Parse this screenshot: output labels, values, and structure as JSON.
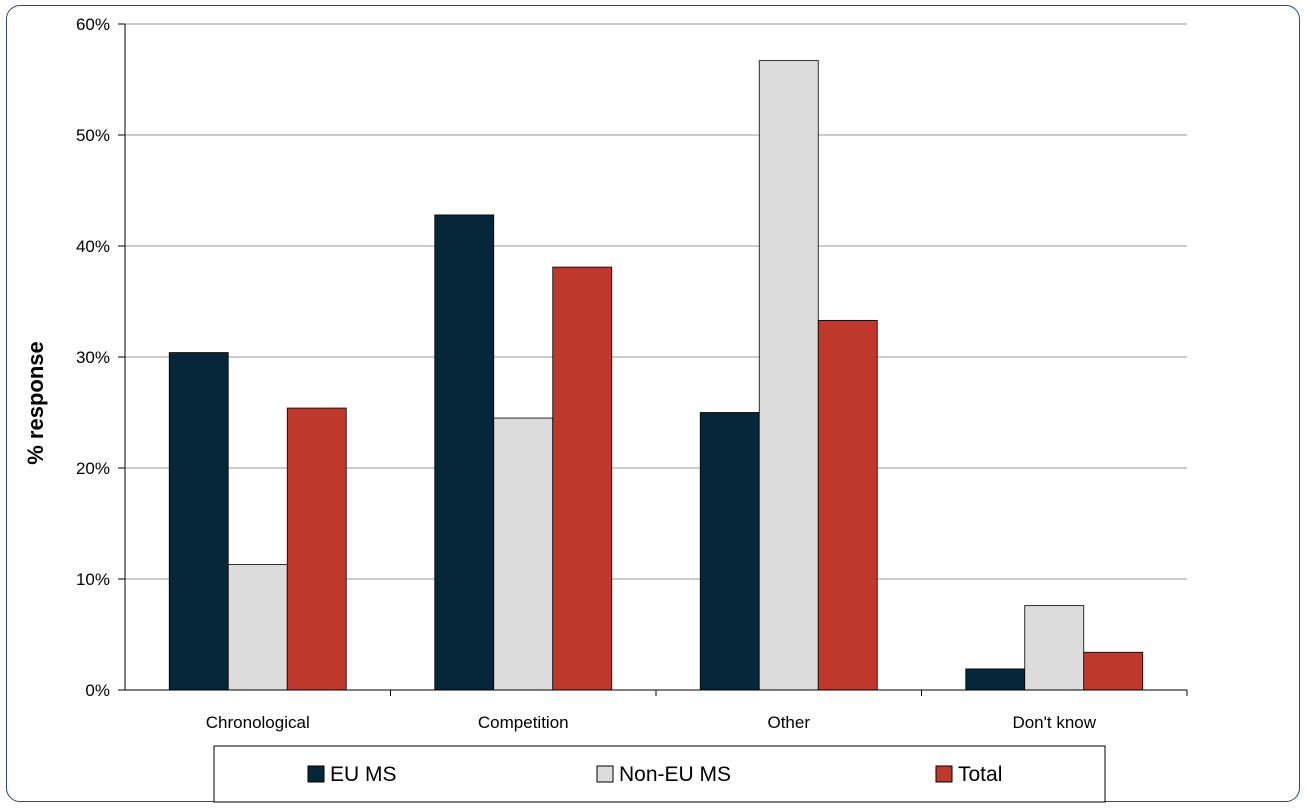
{
  "chart_data": {
    "type": "bar",
    "title": "",
    "xlabel": "",
    "ylabel": "% response",
    "ylim": [
      0,
      60
    ],
    "yticks": [
      "0%",
      "10%",
      "20%",
      "30%",
      "40%",
      "50%",
      "60%"
    ],
    "grid": true,
    "legend_position": "bottom",
    "categories": [
      "Chronological",
      "Competition",
      "Other",
      "Don't know"
    ],
    "series": [
      {
        "name": "EU MS",
        "color": "#06263a",
        "values": [
          30.4,
          42.8,
          25.0,
          1.9
        ]
      },
      {
        "name": "Non-EU MS",
        "color": "#dcdcdc",
        "values": [
          11.3,
          24.5,
          56.7,
          7.6
        ]
      },
      {
        "name": "Total",
        "color": "#c0382b",
        "values": [
          25.4,
          38.1,
          33.3,
          3.4
        ]
      }
    ]
  }
}
